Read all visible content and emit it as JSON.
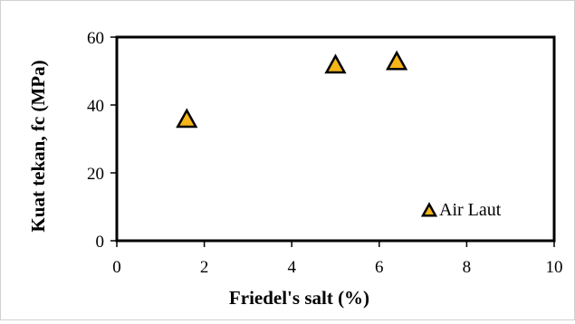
{
  "chart_data": {
    "type": "scatter",
    "title": "",
    "xlabel": "Friedel's salt (%)",
    "ylabel": "Kuat tekan, fc (MPa)",
    "xlim": [
      0,
      10
    ],
    "ylim": [
      0,
      60
    ],
    "xticks": [
      0,
      2,
      4,
      6,
      8,
      10
    ],
    "yticks": [
      0,
      20,
      40,
      60
    ],
    "grid": false,
    "legend_position": "bottom-right",
    "series": [
      {
        "name": "Air Laut",
        "marker": "triangle",
        "color": "#f5b51b",
        "edge_color": "#000000",
        "points": [
          {
            "x": 1.6,
            "y": 36
          },
          {
            "x": 5.0,
            "y": 52
          },
          {
            "x": 6.4,
            "y": 53
          }
        ]
      }
    ]
  }
}
